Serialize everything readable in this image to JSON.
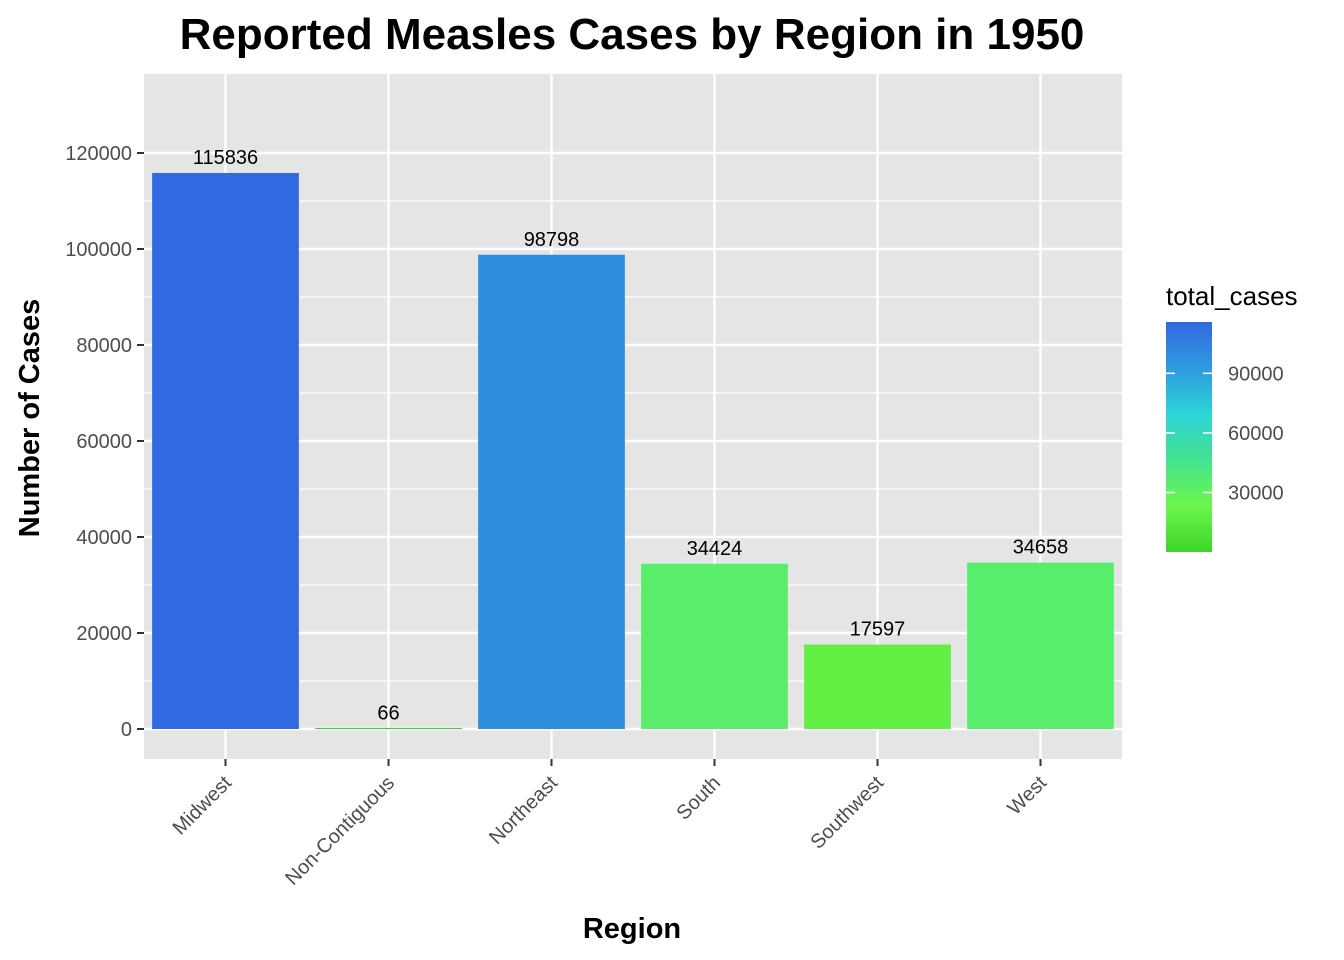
{
  "chart_data": {
    "type": "bar",
    "title": "Reported Measles Cases by Region in 1950",
    "xlabel": "Region",
    "ylabel": "Number of Cases",
    "categories": [
      "Midwest",
      "Non-Contiguous",
      "Northeast",
      "South",
      "Southwest",
      "West"
    ],
    "values": [
      115836,
      66,
      98798,
      34424,
      17597,
      34658
    ],
    "ylim": [
      -6000,
      136000
    ],
    "yticks": [
      0,
      20000,
      40000,
      60000,
      80000,
      100000,
      120000
    ],
    "ytick_labels": [
      "0",
      "20000",
      "40000",
      "60000",
      "80000",
      "100000",
      "120000"
    ],
    "grid": true,
    "legend": {
      "title": "total_cases",
      "position": "right",
      "range": [
        66,
        115836
      ],
      "ticks": [
        30000,
        60000,
        90000
      ],
      "tick_labels": [
        "30000",
        "60000",
        "90000"
      ],
      "gradient_colors": [
        "#3DD42A",
        "#6CF74B",
        "#45E28E",
        "#2DD4D8",
        "#2F9AE0",
        "#3069E0"
      ]
    },
    "colors": {
      "panel_background": "#E5E5E5",
      "grid": "#FFFFFF"
    }
  }
}
